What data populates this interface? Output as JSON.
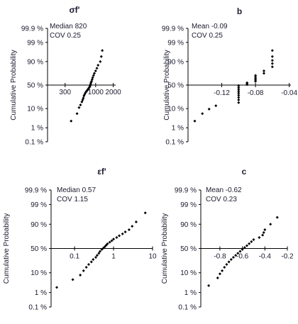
{
  "chart_data": [
    {
      "type": "scatter",
      "title": "σf'",
      "ylabel": "Cumulative Probability",
      "stats": [
        "Median  820",
        "COV   0.25"
      ],
      "x_scale": "log",
      "xlim": [
        150,
        2200
      ],
      "x_ticks": [
        300,
        1000,
        2000
      ],
      "x_tick_labels": [
        "300",
        "1000",
        "2000"
      ],
      "y_scale": "normal-probability",
      "y_tick_labels": [
        "99.9 %",
        "99 %",
        "90 %",
        "50 %",
        "10 %",
        "1 %",
        "0.1 %"
      ],
      "y_ticks": [
        99.9,
        99,
        90,
        50,
        10,
        1,
        0.1
      ],
      "x": [
        380,
        480,
        520,
        550,
        580,
        600,
        615,
        630,
        650,
        670,
        690,
        710,
        730,
        750,
        770,
        790,
        800,
        810,
        820,
        830,
        850,
        870,
        890,
        920,
        950,
        1000,
        1050,
        1100,
        1200,
        1250,
        1300
      ],
      "y": [
        2.5,
        6,
        11,
        14,
        18,
        21,
        24,
        28,
        31,
        34,
        36,
        38,
        40,
        42,
        44,
        46,
        48,
        50,
        52,
        55,
        58,
        62,
        66,
        70,
        74,
        78,
        82,
        86,
        90,
        94,
        97
      ]
    },
    {
      "type": "scatter",
      "title": "b",
      "ylabel": "Cumulative Probability",
      "stats": [
        "Mean  -0.09",
        "COV   0.25"
      ],
      "x_scale": "linear",
      "xlim": [
        -0.16,
        -0.038
      ],
      "x_ticks": [
        -0.12,
        -0.08,
        -0.04
      ],
      "x_tick_labels": [
        "-0.12",
        "-0.08",
        "-0.04"
      ],
      "y_scale": "normal-probability",
      "y_tick_labels": [
        "99.9 %",
        "99 %",
        "90 %",
        "50 %",
        "10 %",
        "1 %",
        "0.1 %"
      ],
      "y_ticks": [
        99.9,
        99,
        90,
        50,
        10,
        1,
        0.1
      ],
      "x": [
        -0.152,
        -0.143,
        -0.135,
        -0.127,
        -0.1,
        -0.1,
        -0.1,
        -0.1,
        -0.1,
        -0.1,
        -0.1,
        -0.1,
        -0.1,
        -0.09,
        -0.09,
        -0.09,
        -0.08,
        -0.08,
        -0.08,
        -0.08,
        -0.08,
        -0.07,
        -0.07,
        -0.06,
        -0.06,
        -0.06,
        -0.06,
        -0.06
      ],
      "y": [
        2.5,
        6,
        9.5,
        13,
        17,
        21,
        25,
        29,
        33,
        37,
        41,
        45,
        49,
        51,
        53,
        55,
        58,
        61,
        64,
        67,
        70,
        74,
        78,
        84,
        88,
        91,
        94,
        97
      ]
    },
    {
      "type": "scatter",
      "title": "εf'",
      "ylabel": "Cumulative Probability",
      "stats": [
        "Median  0.57",
        "COV   1.15"
      ],
      "x_scale": "log",
      "xlim": [
        0.025,
        10
      ],
      "x_ticks": [
        0.1,
        1,
        10
      ],
      "x_tick_labels": [
        "0.1",
        "1",
        "10"
      ],
      "y_scale": "normal-probability",
      "y_tick_labels": [
        "99.9 %",
        "99 %",
        "90 %",
        "50 %",
        "10 %",
        "1 %",
        "0.1 %"
      ],
      "y_ticks": [
        99.9,
        99,
        90,
        50,
        10,
        1,
        0.1
      ],
      "x": [
        0.035,
        0.09,
        0.14,
        0.17,
        0.2,
        0.23,
        0.27,
        0.3,
        0.35,
        0.38,
        0.42,
        0.45,
        0.5,
        0.55,
        0.6,
        0.65,
        0.7,
        0.8,
        0.9,
        1.0,
        1.2,
        1.4,
        1.7,
        2.0,
        2.5,
        3.0,
        3.8,
        6.5
      ],
      "y": [
        2,
        5,
        8,
        12,
        16,
        20,
        24,
        28,
        32,
        36,
        40,
        44,
        48,
        51,
        54,
        57,
        60,
        63,
        66,
        69,
        72,
        75,
        78,
        81,
        84,
        88,
        92,
        97
      ]
    },
    {
      "type": "scatter",
      "title": "c",
      "ylabel": "Cumulative Probability",
      "stats": [
        "Mean  -0.62",
        "COV   0.23"
      ],
      "x_scale": "linear",
      "xlim": [
        -0.97,
        -0.2
      ],
      "x_ticks": [
        -0.8,
        -0.6,
        -0.4,
        -0.2
      ],
      "x_tick_labels": [
        "-0.8",
        "-0.6",
        "-0.4",
        "-0.2"
      ],
      "y_scale": "normal-probability",
      "y_tick_labels": [
        "99.9 %",
        "99 %",
        "90 %",
        "50 %",
        "10 %",
        "1 %",
        "0.1 %"
      ],
      "y_ticks": [
        99.9,
        99,
        90,
        50,
        10,
        1,
        0.1
      ],
      "x": [
        -0.9,
        -0.82,
        -0.8,
        -0.78,
        -0.76,
        -0.74,
        -0.72,
        -0.7,
        -0.68,
        -0.66,
        -0.64,
        -0.62,
        -0.6,
        -0.58,
        -0.56,
        -0.54,
        -0.52,
        -0.5,
        -0.45,
        -0.42,
        -0.41,
        -0.4,
        -0.35,
        -0.29
      ],
      "y": [
        2.5,
        6,
        9,
        12,
        16,
        20,
        24,
        28,
        32,
        36,
        40,
        44,
        48,
        52,
        56,
        60,
        64,
        68,
        72,
        76,
        80,
        84,
        90,
        95
      ]
    }
  ]
}
